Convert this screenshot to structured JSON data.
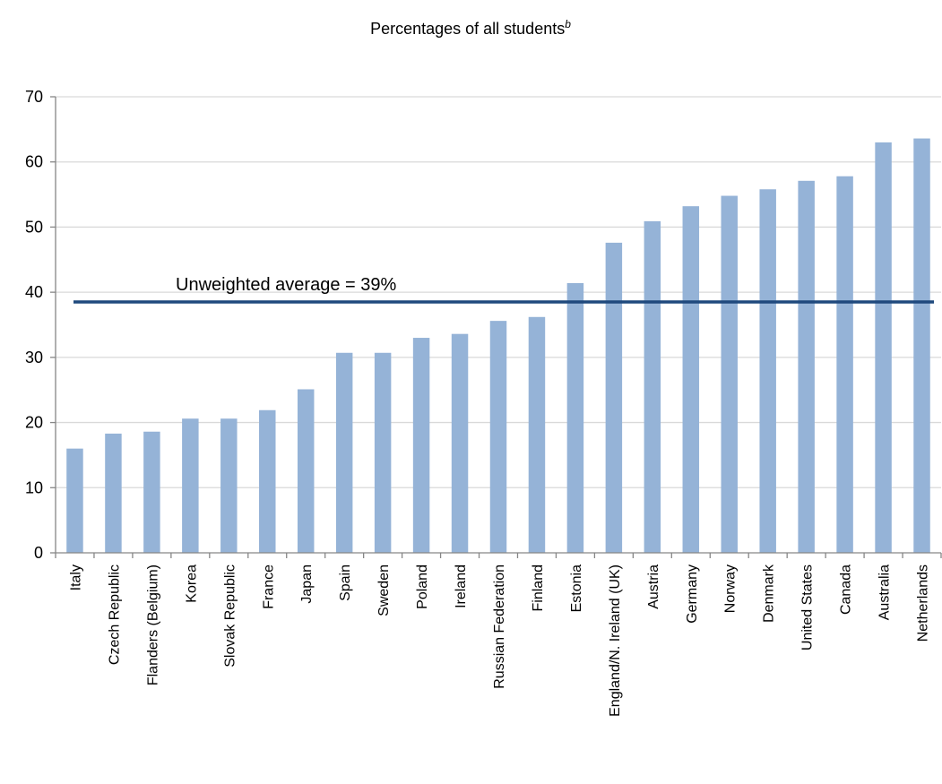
{
  "chart_data": {
    "type": "bar",
    "subtitle": "Percentages of all students",
    "subtitle_superscript": "b",
    "categories": [
      "Italy",
      "Czech Republic",
      "Flanders (Belgium)",
      "Korea",
      "Slovak Republic",
      "France",
      "Japan",
      "Spain",
      "Sweden",
      "Poland",
      "Ireland",
      "Russian Federation",
      "Finland",
      "Estonia",
      "England/N. Ireland (UK)",
      "Austria",
      "Germany",
      "Norway",
      "Denmark",
      "United States",
      "Canada",
      "Australia",
      "Netherlands"
    ],
    "values": [
      16.0,
      18.3,
      18.6,
      20.6,
      20.6,
      21.9,
      25.1,
      30.7,
      30.7,
      33.0,
      33.6,
      35.6,
      36.2,
      41.4,
      47.6,
      50.9,
      53.2,
      54.8,
      55.8,
      57.1,
      57.8,
      63.0,
      63.6
    ],
    "ylim": [
      0,
      70
    ],
    "yticks": [
      0,
      10,
      20,
      30,
      40,
      50,
      60,
      70
    ],
    "grid": true,
    "bar_color": "#95b3d7",
    "average": {
      "value": 38.5,
      "label": "Unweighted average = 39%",
      "color": "#1f497d"
    }
  }
}
